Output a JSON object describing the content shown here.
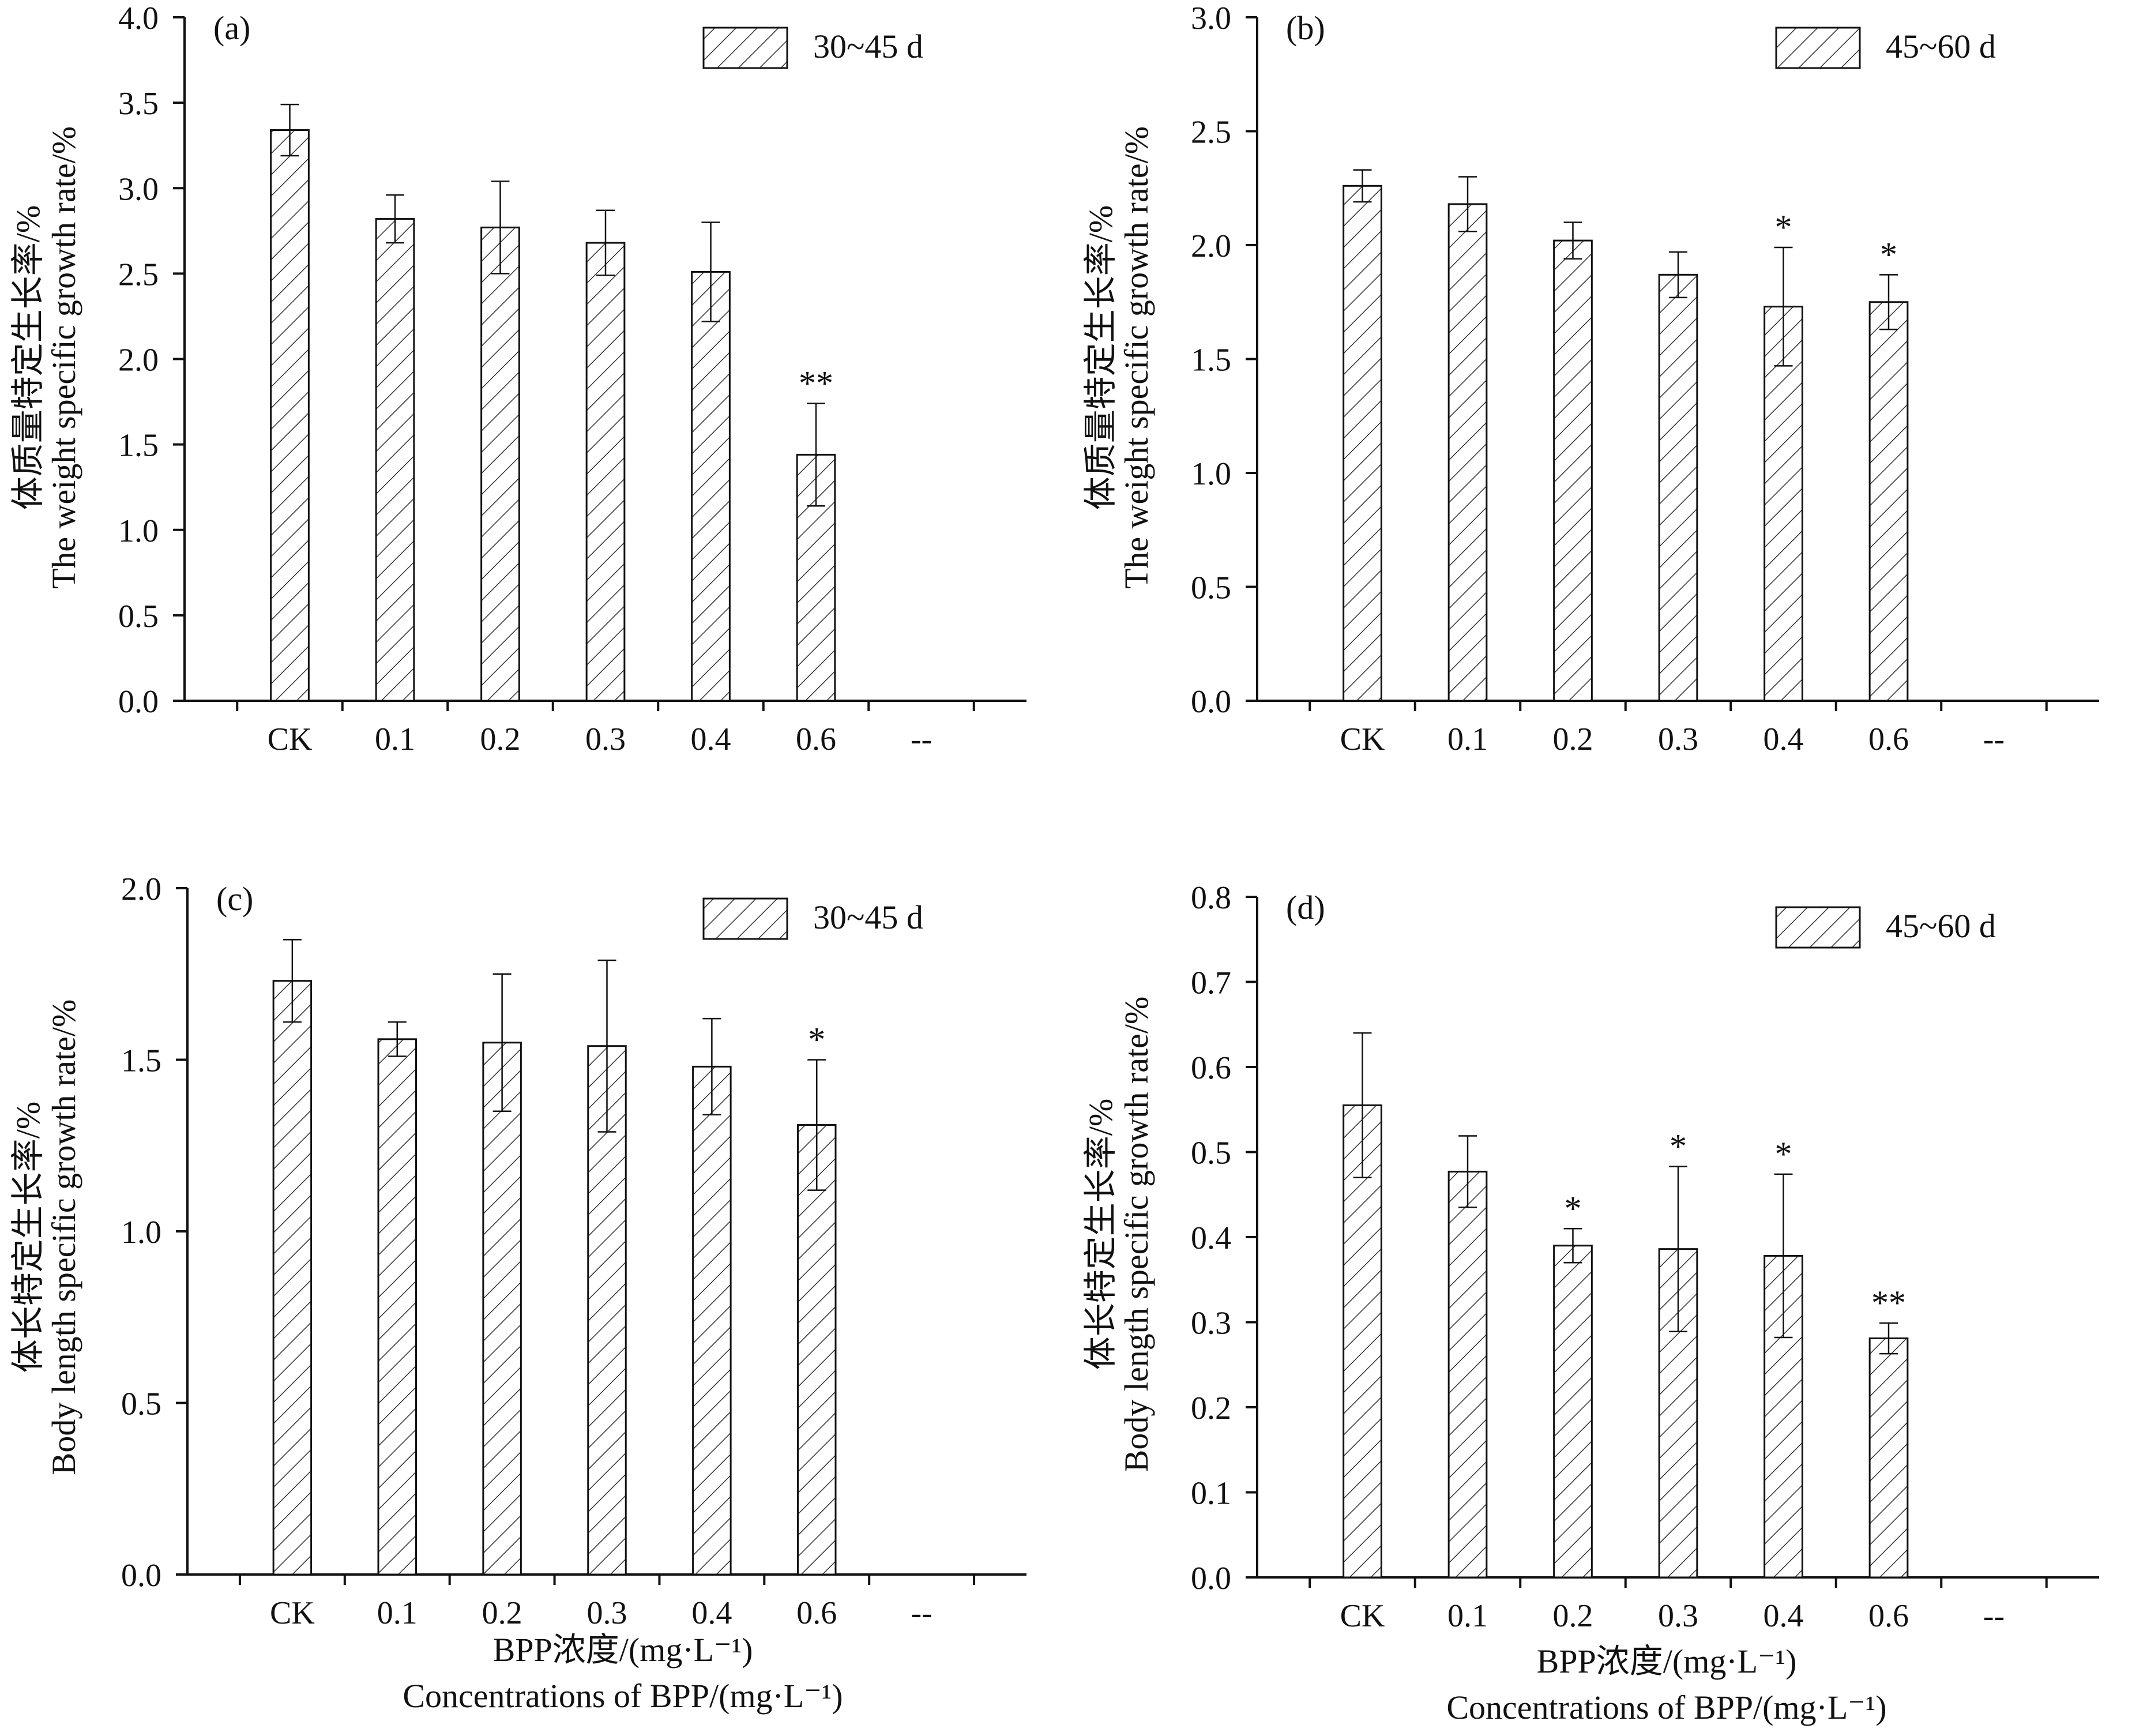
{
  "figure": {
    "xlabel_cn": "BPP浓度/(mg·L⁻¹)",
    "xlabel_en": "Concentrations of BPP/(mg·L⁻¹)"
  },
  "chart_data": [
    {
      "type": "bar",
      "panel": "(a)",
      "legend": "30~45 d",
      "ylabel_cn": "体质量特定生长率/%",
      "ylabel_en": "The weight specific growth rate/%",
      "categories": [
        "CK",
        "0.1",
        "0.2",
        "0.3",
        "0.4",
        "0.6",
        "--"
      ],
      "values": [
        3.34,
        2.82,
        2.77,
        2.68,
        2.51,
        1.44,
        null
      ],
      "errors": [
        0.15,
        0.14,
        0.27,
        0.19,
        0.29,
        0.3,
        null
      ],
      "significance": [
        "",
        "",
        "",
        "",
        "",
        "**",
        ""
      ],
      "ylim": [
        0,
        4.0
      ],
      "yticks": [
        "0.0",
        "0.5",
        "1.0",
        "1.5",
        "2.0",
        "2.5",
        "3.0",
        "3.5",
        "4.0"
      ],
      "legend_position": "top-right"
    },
    {
      "type": "bar",
      "panel": "(b)",
      "legend": "45~60 d",
      "ylabel_cn": "体质量特定生长率/%",
      "ylabel_en": "The weight specific growth rate/%",
      "categories": [
        "CK",
        "0.1",
        "0.2",
        "0.3",
        "0.4",
        "0.6",
        "--"
      ],
      "values": [
        2.26,
        2.18,
        2.02,
        1.87,
        1.73,
        1.75,
        null
      ],
      "errors": [
        0.07,
        0.12,
        0.08,
        0.1,
        0.26,
        0.12,
        null
      ],
      "significance": [
        "",
        "",
        "",
        "",
        "*",
        "*",
        ""
      ],
      "ylim": [
        0,
        3.0
      ],
      "yticks": [
        "0.0",
        "0.5",
        "1.0",
        "1.5",
        "2.0",
        "2.5",
        "3.0"
      ],
      "legend_position": "top-right"
    },
    {
      "type": "bar",
      "panel": "(c)",
      "legend": "30~45 d",
      "ylabel_cn": "体长特定生长率/%",
      "ylabel_en": "Body length specific growth rate/%",
      "categories": [
        "CK",
        "0.1",
        "0.2",
        "0.3",
        "0.4",
        "0.6",
        "--"
      ],
      "values": [
        1.73,
        1.56,
        1.55,
        1.54,
        1.48,
        1.31,
        null
      ],
      "errors": [
        0.12,
        0.05,
        0.2,
        0.25,
        0.14,
        0.19,
        null
      ],
      "significance": [
        "",
        "",
        "",
        "",
        "",
        "*",
        ""
      ],
      "ylim": [
        0,
        2.0
      ],
      "yticks": [
        "0.0",
        "0.5",
        "1.0",
        "1.5",
        "2.0"
      ],
      "legend_position": "top-right"
    },
    {
      "type": "bar",
      "panel": "(d)",
      "legend": "45~60 d",
      "ylabel_cn": "体长特定生长率/%",
      "ylabel_en": "Body length specific growth rate/%",
      "categories": [
        "CK",
        "0.1",
        "0.2",
        "0.3",
        "0.4",
        "0.6",
        "--"
      ],
      "values": [
        0.555,
        0.477,
        0.39,
        0.386,
        0.378,
        0.281,
        null
      ],
      "errors": [
        0.085,
        0.042,
        0.02,
        0.097,
        0.096,
        0.018,
        null
      ],
      "significance": [
        "",
        "",
        "*",
        "*",
        "*",
        "**",
        ""
      ],
      "ylim": [
        0,
        0.8
      ],
      "yticks": [
        "0.0",
        "0.1",
        "0.2",
        "0.3",
        "0.4",
        "0.5",
        "0.6",
        "0.7",
        "0.8"
      ],
      "legend_position": "top-right"
    }
  ]
}
